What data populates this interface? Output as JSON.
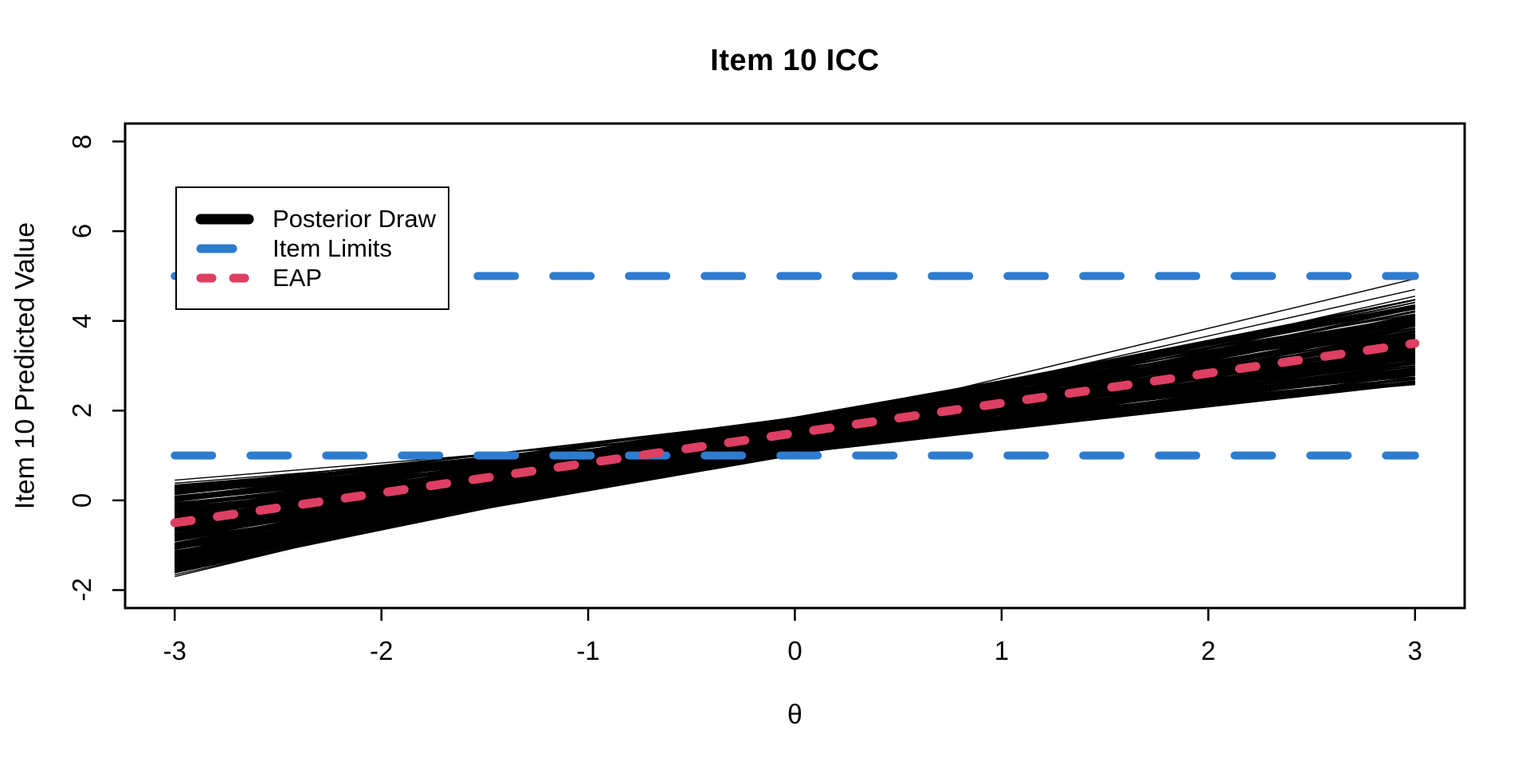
{
  "title": "Item 10 ICC",
  "colors": {
    "posterior": "#000000",
    "item_limits": "#2E7CCF",
    "eap": "#DE3F63",
    "axis": "#000000",
    "background": "#FFFFFF"
  },
  "axes": {
    "x": {
      "label": "θ",
      "tick_labels": [
        "-3",
        "-2",
        "-1",
        "0",
        "1",
        "2",
        "3"
      ]
    },
    "y": {
      "label": "Item 10 Predicted Value",
      "tick_labels": [
        "-2",
        "0",
        "2",
        "4",
        "6",
        "8"
      ]
    }
  },
  "legend": {
    "items": [
      {
        "label": "Posterior Draw",
        "color_key": "posterior",
        "sample": "solid"
      },
      {
        "label": "Item Limits",
        "color_key": "item_limits",
        "sample": "long-dash"
      },
      {
        "label": "EAP",
        "color_key": "eap",
        "sample": "short-dash"
      }
    ]
  },
  "chart_data": {
    "type": "line",
    "title": "Item 10 ICC",
    "xlabel": "θ",
    "ylabel": "Item 10 Predicted Value",
    "xlim": [
      -3.24,
      3.24
    ],
    "ylim": [
      -2.4,
      8.4
    ],
    "x_ticks": [
      -3,
      -2,
      -1,
      0,
      1,
      2,
      3
    ],
    "y_ticks": [
      -2,
      0,
      2,
      4,
      6,
      8
    ],
    "grid": false,
    "legend_position": "top-left",
    "series": [
      {
        "name": "Posterior Draw",
        "type": "fan",
        "color": "#000000",
        "x_range": [
          -3,
          3
        ],
        "n_draws": 250,
        "seed": 42,
        "y_at_x_minus3_range": [
          -1.62,
          0.35
        ],
        "y_at_x_plus3_range": [
          2.6,
          4.47
        ],
        "y_at_x0_range": [
          1.1,
          1.95
        ],
        "anticorrelation_mix": 0.9,
        "outlier_draws": [
          [
            -1.7,
            4.94
          ],
          [
            -1.52,
            4.7
          ],
          [
            0.45,
            2.75
          ],
          [
            0.38,
            2.62
          ],
          [
            -1.66,
            4.55
          ],
          [
            0.3,
            2.58
          ]
        ],
        "line_width": 1.7
      },
      {
        "name": "Item Limits",
        "type": "hlines",
        "color": "#2E7CCF",
        "values": [
          1,
          5
        ],
        "x_range": [
          -3,
          3
        ],
        "style": "dashed",
        "line_width": 10
      },
      {
        "name": "EAP",
        "type": "line",
        "color": "#DE3F63",
        "x": [
          -3,
          3
        ],
        "y": [
          -0.5,
          3.5
        ],
        "style": "dotted",
        "line_width": 11
      }
    ]
  }
}
